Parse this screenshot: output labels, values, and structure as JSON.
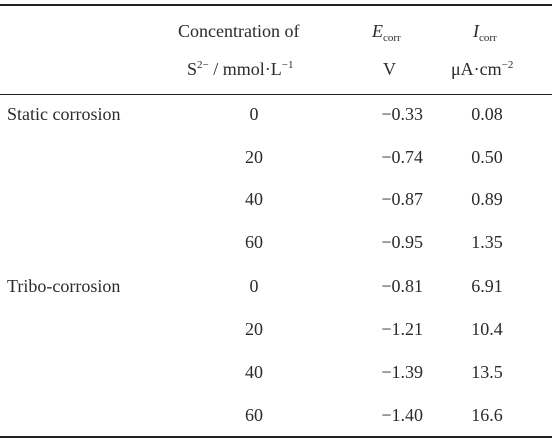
{
  "header": {
    "conc_line1": "Concentration of",
    "conc_s": "S",
    "conc_s_sup": "2−",
    "conc_unit": " / mmol·L",
    "conc_unit_sup": "−1",
    "ecorr_symbol": "E",
    "ecorr_sub": "corr",
    "ecorr_unit": "V",
    "icorr_symbol": "I",
    "icorr_sub": "corr",
    "icorr_unit": "μA·cm",
    "icorr_unit_sup": "−2"
  },
  "rows": [
    {
      "group": "Static corrosion",
      "conc": "0",
      "ecorr": "−0.33",
      "icorr": "0.08"
    },
    {
      "group": "",
      "conc": "20",
      "ecorr": "−0.74",
      "icorr": "0.50"
    },
    {
      "group": "",
      "conc": "40",
      "ecorr": "−0.87",
      "icorr": "0.89"
    },
    {
      "group": "",
      "conc": "60",
      "ecorr": "−0.95",
      "icorr": "1.35"
    },
    {
      "group": "Tribo-corrosion",
      "conc": "0",
      "ecorr": "−0.81",
      "icorr": "6.91"
    },
    {
      "group": "",
      "conc": "20",
      "ecorr": "−1.21",
      "icorr": "10.4"
    },
    {
      "group": "",
      "conc": "40",
      "ecorr": "−1.39",
      "icorr": "13.5"
    },
    {
      "group": "",
      "conc": "60",
      "ecorr": "−1.40",
      "icorr": "16.6"
    }
  ]
}
